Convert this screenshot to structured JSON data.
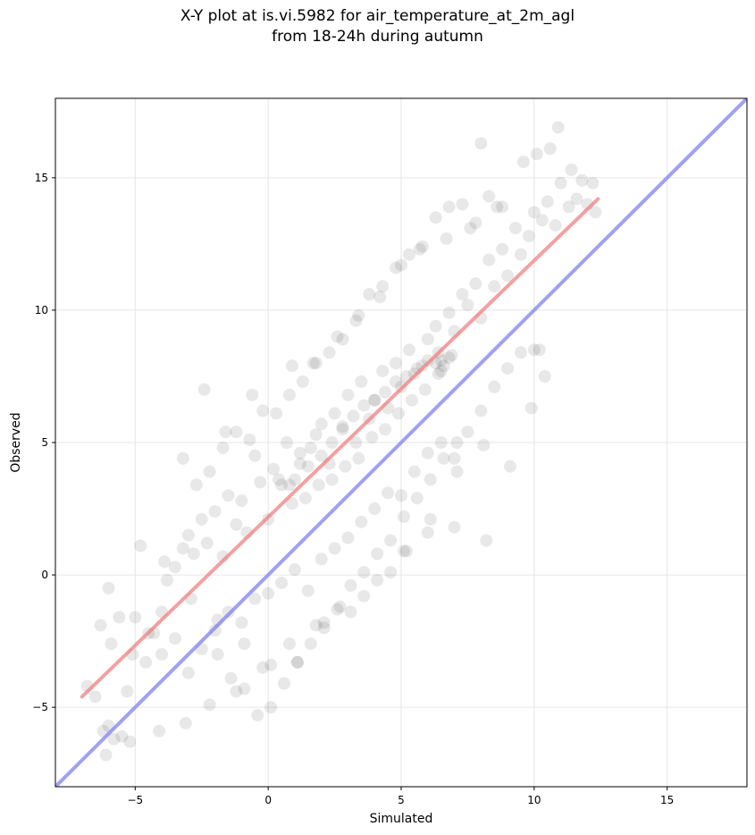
{
  "chart_data": {
    "type": "scatter",
    "title_line1": "X-Y plot at is.vi.5982 for air_temperature_at_2m_agl",
    "title_line2": "from 18-24h during autumn",
    "xlabel": "Simulated",
    "ylabel": "Observed",
    "xlim": [
      -8,
      18
    ],
    "ylim": [
      -8,
      18
    ],
    "xticks": [
      -5,
      0,
      5,
      10,
      15
    ],
    "yticks": [
      -5,
      0,
      5,
      10,
      15
    ],
    "xtick_labels": [
      "−5",
      "0",
      "5",
      "10",
      "15"
    ],
    "ytick_labels": [
      "−5",
      "0",
      "5",
      "10",
      "15"
    ],
    "grid": true,
    "colors": {
      "points": "#000000",
      "fit_line": "#f08080",
      "identity_line": "#8080f0",
      "grid": "#e6e6e6"
    },
    "series": [
      {
        "kind": "points",
        "x": [
          -6.8,
          -6.5,
          -6.2,
          -6.0,
          -5.8,
          -5.5,
          -5.3,
          -5.1,
          -6.3,
          -5.9,
          -5.6,
          -4.6,
          -4.3,
          -4.0,
          -3.8,
          -3.5,
          -3.2,
          -3.0,
          -2.8,
          -2.5,
          -2.3,
          -2.0,
          -1.7,
          -1.5,
          -1.2,
          -1.0,
          -0.8,
          -0.5,
          -0.3,
          0.0,
          0.2,
          0.5,
          0.7,
          1.0,
          1.2,
          1.5,
          1.8,
          2.0,
          2.3,
          2.5,
          2.8,
          3.0,
          3.3,
          3.5,
          3.8,
          4.0,
          4.3,
          4.5,
          4.8,
          5.0,
          5.3,
          5.5,
          5.8,
          6.0,
          6.3,
          6.5,
          6.8,
          7.0,
          7.3,
          7.5,
          7.8,
          8.0,
          8.3,
          8.5,
          8.8,
          9.0,
          9.3,
          9.5,
          9.8,
          10.0,
          10.3,
          10.5,
          10.8,
          11.0,
          11.3,
          11.6,
          12.0,
          12.3,
          -6.0,
          -5.0,
          -4.5,
          -4.0,
          -3.5,
          -3.0,
          -2.5,
          -2.0,
          -1.5,
          -1.0,
          -0.5,
          0.0,
          0.5,
          1.0,
          1.5,
          2.0,
          2.5,
          3.0,
          3.5,
          4.0,
          4.5,
          5.0,
          5.5,
          6.0,
          6.5,
          7.0,
          7.5,
          8.0,
          8.5,
          9.0,
          9.5,
          10.0,
          -3.2,
          -2.7,
          -2.2,
          -1.7,
          -1.2,
          -0.7,
          -0.2,
          0.3,
          0.8,
          1.3,
          1.8,
          2.3,
          2.8,
          3.3,
          3.8,
          4.3,
          4.8,
          5.3,
          5.8,
          6.3,
          6.8,
          7.3,
          7.8,
          8.3,
          8.8,
          -1.9,
          -1.4,
          -0.9,
          -0.4,
          0.1,
          0.6,
          1.1,
          1.6,
          2.1,
          2.6,
          3.1,
          3.6,
          4.1,
          4.6,
          5.1,
          5.6,
          6.1,
          6.6,
          7.1,
          0.4,
          0.8,
          1.2,
          1.6,
          2.0,
          2.4,
          2.8,
          3.2,
          3.6,
          4.0,
          4.4,
          4.8,
          5.2,
          5.6,
          6.0,
          6.4,
          6.6,
          6.8,
          6.5,
          6.3,
          0.9,
          1.4,
          1.9,
          2.4,
          2.9,
          3.4,
          3.9,
          4.4,
          4.9,
          5.4,
          5.9,
          6.4,
          6.9,
          -4.8,
          -3.9,
          -2.9,
          -1.9,
          -0.9,
          0.1,
          1.1,
          2.1,
          3.1,
          4.1,
          5.1,
          6.1,
          7.1,
          8.1,
          9.1,
          -2.4,
          -1.6,
          -0.6,
          0.9,
          1.7,
          2.6,
          3.4,
          4.2,
          5.0,
          5.7,
          6.7,
          7.6,
          8.6,
          9.6,
          10.1,
          10.6,
          10.9,
          11.4,
          11.8,
          12.2,
          8.0,
          9.9,
          10.2,
          10.4,
          8.2,
          7.0,
          6.0,
          5.2,
          4.6,
          3.6,
          2.7,
          1.8,
          0.8,
          -0.2,
          -1.2,
          -2.2,
          -3.1,
          -4.1,
          -5.2,
          -6.1
        ],
        "y": [
          -4.2,
          -4.6,
          -5.9,
          -5.7,
          -6.2,
          -6.1,
          -4.4,
          -3.0,
          -1.9,
          -2.6,
          -1.6,
          -3.3,
          -2.2,
          -1.4,
          -0.2,
          0.3,
          1.0,
          1.5,
          0.8,
          2.1,
          1.2,
          2.4,
          0.7,
          3.0,
          1.9,
          2.8,
          1.6,
          4.5,
          3.5,
          2.1,
          4.0,
          3.4,
          5.0,
          3.6,
          4.6,
          4.1,
          5.3,
          5.7,
          4.2,
          6.1,
          5.5,
          6.8,
          5.0,
          7.3,
          5.9,
          6.6,
          7.7,
          6.3,
          8.0,
          7.1,
          8.5,
          7.6,
          7.9,
          8.9,
          9.4,
          8.1,
          9.9,
          9.2,
          10.6,
          10.2,
          11.0,
          9.7,
          11.9,
          10.9,
          12.3,
          11.3,
          13.1,
          12.1,
          12.8,
          13.7,
          13.4,
          14.1,
          13.2,
          14.8,
          13.9,
          14.2,
          14.0,
          13.7,
          -0.5,
          -1.6,
          -2.2,
          -3.0,
          -2.4,
          -3.7,
          -2.8,
          -2.1,
          -1.4,
          -1.8,
          -0.9,
          -0.7,
          -0.3,
          0.2,
          -0.6,
          0.6,
          1.0,
          1.4,
          2.0,
          2.5,
          3.1,
          3.0,
          3.9,
          4.6,
          5.0,
          4.4,
          5.4,
          6.2,
          7.1,
          7.8,
          8.4,
          8.5,
          4.4,
          3.4,
          3.9,
          4.8,
          5.4,
          5.1,
          6.2,
          6.1,
          6.8,
          7.3,
          8.0,
          8.4,
          8.9,
          9.6,
          10.6,
          10.9,
          11.6,
          12.1,
          12.4,
          13.5,
          13.9,
          14.0,
          13.3,
          14.3,
          13.9,
          -3.0,
          -3.9,
          -4.3,
          -5.3,
          -5.0,
          -4.1,
          -3.3,
          -2.6,
          -1.8,
          -1.3,
          -0.4,
          0.1,
          0.8,
          1.3,
          2.2,
          2.9,
          3.6,
          4.4,
          5.0,
          3.6,
          3.4,
          4.2,
          4.8,
          4.5,
          5.0,
          5.6,
          6.0,
          6.4,
          6.6,
          6.9,
          7.3,
          7.5,
          7.8,
          8.1,
          8.4,
          7.9,
          8.2,
          7.7,
          8.0,
          2.7,
          2.9,
          3.4,
          3.6,
          4.1,
          4.4,
          5.2,
          5.5,
          6.1,
          6.6,
          7.0,
          7.6,
          8.3,
          1.1,
          0.5,
          -0.9,
          -1.7,
          -2.6,
          -3.4,
          -3.3,
          -2.0,
          -1.4,
          -0.2,
          0.9,
          2.1,
          3.9,
          4.9,
          4.1,
          7.0,
          5.4,
          6.8,
          7.9,
          8.0,
          9.0,
          9.8,
          10.5,
          11.7,
          12.3,
          12.7,
          13.1,
          13.9,
          15.6,
          15.9,
          16.1,
          16.9,
          15.3,
          14.9,
          14.8,
          16.3,
          6.3,
          8.5,
          7.5,
          1.3,
          1.8,
          1.6,
          0.9,
          0.1,
          -0.8,
          -1.2,
          -1.9,
          -2.6,
          -3.5,
          -4.4,
          -4.9,
          -5.6,
          -5.9,
          -6.3,
          -6.8
        ]
      },
      {
        "kind": "fit_line",
        "x": [
          -7.0,
          12.4
        ],
        "y": [
          -4.6,
          14.2
        ]
      },
      {
        "kind": "identity_line",
        "x": [
          -8,
          18
        ],
        "y": [
          -8,
          18
        ]
      }
    ]
  }
}
